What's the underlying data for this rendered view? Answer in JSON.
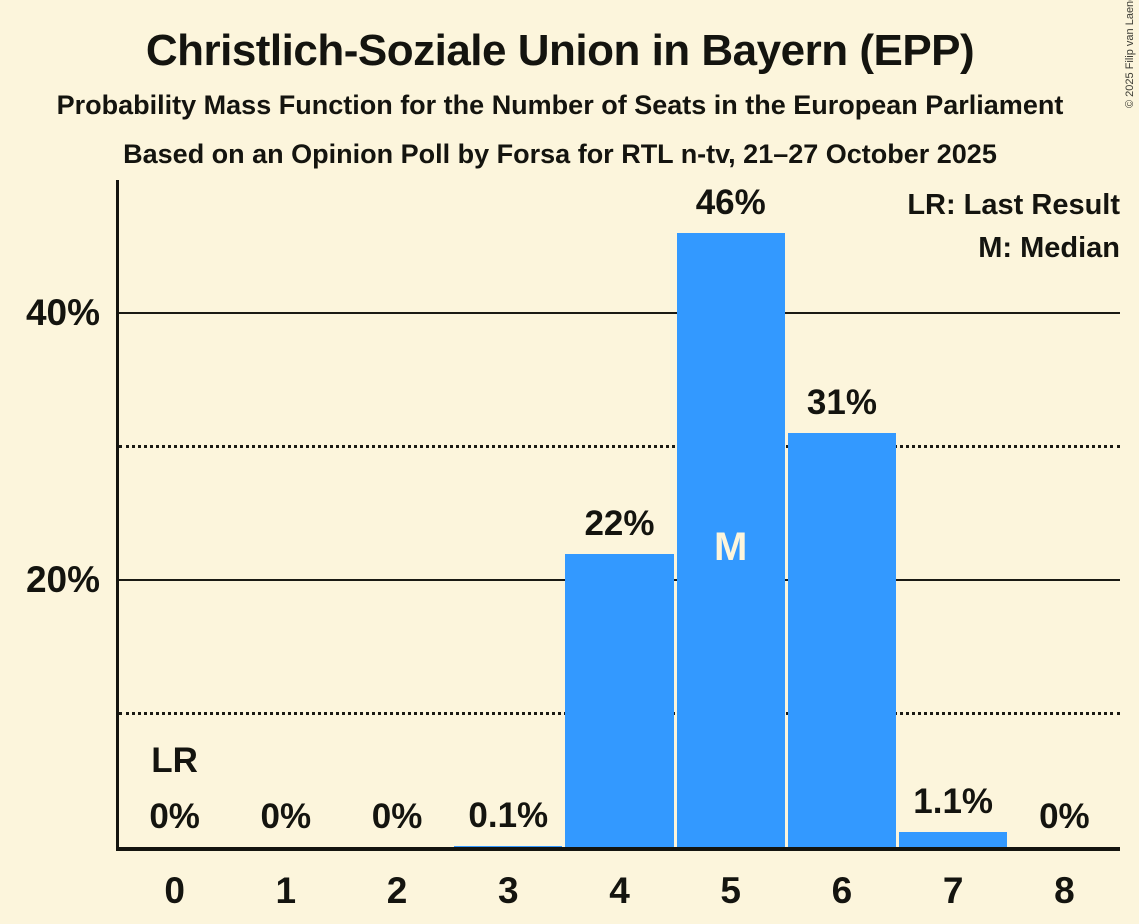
{
  "title": "Christlich-Soziale Union in Bayern (EPP)",
  "subtitle1": "Probability Mass Function for the Number of Seats in the European Parliament",
  "subtitle2": "Based on an Opinion Poll by Forsa for RTL n-tv, 21–27 October 2025",
  "copyright": "© 2025 Filip van Laenen",
  "legend": {
    "lr": "LR: Last Result",
    "m": "M: Median"
  },
  "chart_data": {
    "type": "bar",
    "title": "Christlich-Soziale Union in Bayern (EPP)",
    "categories": [
      "0",
      "1",
      "2",
      "3",
      "4",
      "5",
      "6",
      "7",
      "8"
    ],
    "values": [
      0,
      0,
      0,
      0.1,
      22,
      46,
      31,
      1.1,
      0
    ],
    "bar_labels": [
      "0%",
      "0%",
      "0%",
      "0.1%",
      "22%",
      "46%",
      "31%",
      "1.1%",
      "0%"
    ],
    "ylim": [
      0,
      50
    ],
    "yticks": [
      {
        "pct": 40,
        "label": "40%"
      },
      {
        "pct": 20,
        "label": "20%"
      }
    ],
    "solid_gridlines_pct": [
      40,
      20
    ],
    "dotted_gridlines_pct": [
      30,
      10
    ],
    "median_seat_index": 5,
    "median_marker": "M",
    "last_result_seat_index": 0,
    "last_result_marker": "LR",
    "legend_position": "top-right",
    "grid": true,
    "bar_color": "#3399FF",
    "background_color": "#FCF5DC",
    "text_color": "#14140F"
  }
}
